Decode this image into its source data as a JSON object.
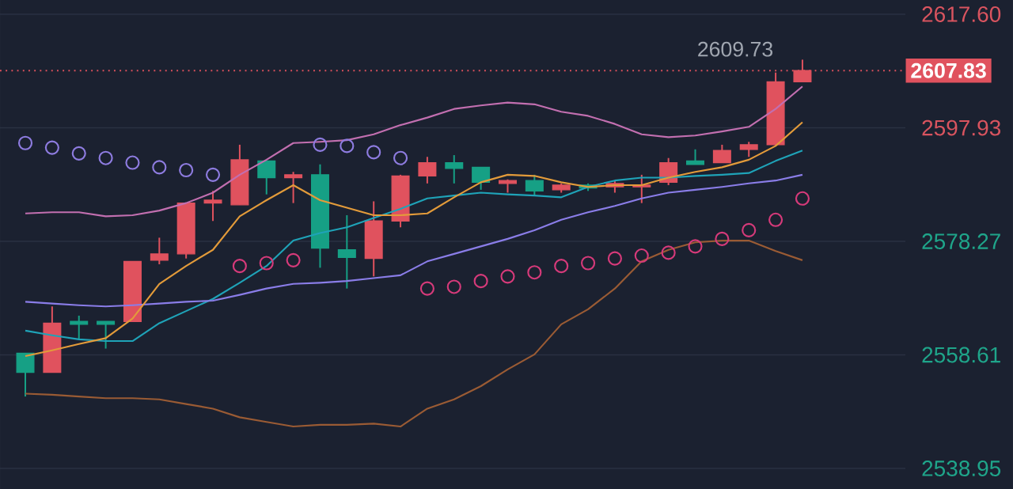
{
  "chart_data": {
    "type": "candlestick",
    "categories": [
      null,
      null,
      null,
      null,
      null,
      null,
      null,
      null,
      null,
      null,
      null,
      null,
      null,
      null,
      null,
      null,
      null,
      null,
      null,
      null,
      null,
      null,
      null,
      null,
      null,
      null,
      null,
      null,
      null,
      null
    ],
    "ylim": [
      2538.95,
      2617.6
    ],
    "yticks": [
      {
        "value": 2538.95,
        "label": "2538.95"
      },
      {
        "value": 2558.61,
        "label": "2558.61"
      },
      {
        "value": 2578.27,
        "label": "2578.27"
      },
      {
        "value": 2597.93,
        "label": "2597.93"
      },
      {
        "value": 2617.6,
        "label": "2617.60"
      }
    ],
    "tick_labels": "y",
    "grid": "y",
    "series": [
      {
        "type": "line",
        "color": "#c26fb0",
        "values": [
          2583.1,
          2583.3,
          2583.3,
          2582.6,
          2582.8,
          2583.6,
          2584.9,
          2586.7,
          2589.8,
          2592.4,
          2595.3,
          2595.5,
          2595.8,
          2596.8,
          2598.4,
          2599.7,
          2601.2,
          2601.8,
          2602.3,
          2602.0,
          2600.7,
          2600.0,
          2598.6,
          2596.8,
          2596.3,
          2596.6,
          2597.3,
          2598.1,
          2601.2,
          2605.1
        ]
      },
      {
        "type": "line",
        "color": "#9a5b34",
        "values": [
          2551.9,
          2551.7,
          2551.4,
          2551.1,
          2551.1,
          2550.9,
          2550.1,
          2549.3,
          2547.8,
          2547.0,
          2546.2,
          2546.5,
          2546.5,
          2546.7,
          2546.2,
          2549.3,
          2550.9,
          2553.2,
          2556.1,
          2558.7,
          2563.9,
          2566.5,
          2570.1,
          2574.8,
          2576.8,
          2578.1,
          2578.4,
          2578.4,
          2576.6,
          2575.0
        ]
      },
      {
        "type": "line",
        "color": "#1fa3b8",
        "values": [
          2562.8,
          2562.0,
          2561.3,
          2561.0,
          2561.0,
          2564.1,
          2566.2,
          2568.3,
          2571.1,
          2574.0,
          2578.4,
          2579.7,
          2580.7,
          2582.3,
          2583.9,
          2585.7,
          2586.2,
          2586.7,
          2586.4,
          2586.2,
          2585.9,
          2587.7,
          2588.8,
          2589.3,
          2589.3,
          2589.6,
          2589.8,
          2590.1,
          2592.2,
          2594.0
        ]
      },
      {
        "type": "line",
        "color": "#8a7de8",
        "values": [
          2567.8,
          2567.5,
          2567.2,
          2567.0,
          2567.2,
          2567.5,
          2567.8,
          2568.0,
          2569.0,
          2570.1,
          2570.9,
          2571.1,
          2571.4,
          2571.9,
          2572.4,
          2574.8,
          2576.1,
          2577.4,
          2578.7,
          2580.2,
          2582.0,
          2583.3,
          2584.4,
          2585.7,
          2586.7,
          2587.2,
          2587.7,
          2588.3,
          2588.8,
          2589.8
        ]
      },
      {
        "type": "line",
        "color": "#e39b3a",
        "values": [
          2558.4,
          2559.4,
          2560.5,
          2561.5,
          2564.9,
          2570.9,
          2574.0,
          2576.8,
          2582.6,
          2585.4,
          2588.0,
          2585.4,
          2584.1,
          2582.8,
          2582.8,
          2583.1,
          2585.9,
          2588.5,
          2589.8,
          2589.6,
          2588.5,
          2587.7,
          2588.0,
          2588.0,
          2589.3,
          2590.3,
          2591.1,
          2592.4,
          2594.8,
          2598.9
        ]
      },
      {
        "type": "scatter",
        "marker": "circle",
        "color": "#8e7ce0",
        "values": [
          2595.3,
          2594.5,
          2593.5,
          2592.7,
          2591.9,
          2591.1,
          2590.6,
          2589.8,
          null,
          null,
          null,
          2595.0,
          2594.8,
          2593.7,
          2592.7,
          null,
          null,
          null,
          null,
          null,
          null,
          null,
          null,
          null,
          null,
          null,
          null,
          null,
          null,
          null
        ]
      },
      {
        "type": "scatter",
        "marker": "circle",
        "color": "#d63a7a",
        "values": [
          null,
          null,
          null,
          null,
          null,
          null,
          null,
          null,
          2574.0,
          2574.5,
          2575.0,
          null,
          null,
          null,
          null,
          2570.1,
          2570.4,
          2571.4,
          2572.2,
          2572.9,
          2574.0,
          2574.5,
          2575.3,
          2575.8,
          2576.3,
          2577.4,
          2578.7,
          2580.2,
          2582.0,
          2585.7
        ]
      },
      {
        "colors": [
          "#16a085",
          "#e0525e",
          "#16a085",
          "#16a085",
          "#e0525e",
          "#e0525e",
          "#e0525e",
          "#e0525e",
          "#e0525e",
          "#16a085",
          "#e0525e",
          "#16a085",
          "#16a085",
          "#e0525e",
          "#e0525e",
          "#e0525e",
          "#16a085",
          "#16a085",
          "#e0525e",
          "#16a085",
          "#e0525e",
          "#16a085",
          "#e0525e",
          "#e0525e",
          "#e0525e",
          "#16a085",
          "#e0525e",
          "#e0525e",
          "#e0525e",
          "#e0525e"
        ],
        "ohlc": [
          [
            2558.9,
            2558.9,
            2551.4,
            2555.6
          ],
          [
            2555.6,
            2567.0,
            2555.6,
            2564.1
          ],
          [
            2564.4,
            2565.4,
            2561.3,
            2563.9
          ],
          [
            2564.4,
            2564.4,
            2559.7,
            2563.9
          ],
          [
            2564.4,
            2574.8,
            2564.4,
            2574.8
          ],
          [
            2575.0,
            2578.9,
            2574.3,
            2576.1
          ],
          [
            2576.1,
            2584.9,
            2575.3,
            2584.9
          ],
          [
            2584.9,
            2587.0,
            2581.8,
            2585.4
          ],
          [
            2584.6,
            2595.0,
            2584.6,
            2592.4
          ],
          [
            2592.2,
            2592.2,
            2586.4,
            2589.3
          ],
          [
            2589.3,
            2590.3,
            2584.9,
            2589.8
          ],
          [
            2589.8,
            2591.6,
            2573.7,
            2577.1
          ],
          [
            2576.8,
            2582.8,
            2570.1,
            2575.5
          ],
          [
            2575.3,
            2585.2,
            2572.2,
            2581.8
          ],
          [
            2581.8,
            2589.8,
            2580.7,
            2589.6
          ],
          [
            2589.6,
            2592.9,
            2588.3,
            2591.9
          ],
          [
            2591.9,
            2593.2,
            2588.3,
            2590.9
          ],
          [
            2591.1,
            2591.1,
            2587.2,
            2588.5
          ],
          [
            2588.3,
            2589.0,
            2586.7,
            2588.8
          ],
          [
            2588.8,
            2589.8,
            2586.2,
            2587.0
          ],
          [
            2587.2,
            2588.3,
            2586.7,
            2588.0
          ],
          [
            2588.0,
            2588.3,
            2587.0,
            2587.5
          ],
          [
            2587.7,
            2588.8,
            2586.7,
            2588.3
          ],
          [
            2587.7,
            2589.8,
            2584.9,
            2588.0
          ],
          [
            2588.5,
            2592.7,
            2588.0,
            2591.9
          ],
          [
            2592.2,
            2594.2,
            2591.6,
            2591.6
          ],
          [
            2591.9,
            2595.0,
            2591.9,
            2594.0
          ],
          [
            2594.2,
            2595.5,
            2592.9,
            2595.0
          ],
          [
            2595.0,
            2607.5,
            2594.8,
            2605.9
          ],
          [
            2605.9,
            2609.73,
            2605.9,
            2607.83
          ]
        ]
      }
    ],
    "ref_lines": [
      {
        "axis": "y",
        "value": 2607.83,
        "label": "2607.83",
        "color": "#e0525e",
        "line_style": "dotted"
      }
    ],
    "annotations": [
      "2609.73"
    ]
  }
}
